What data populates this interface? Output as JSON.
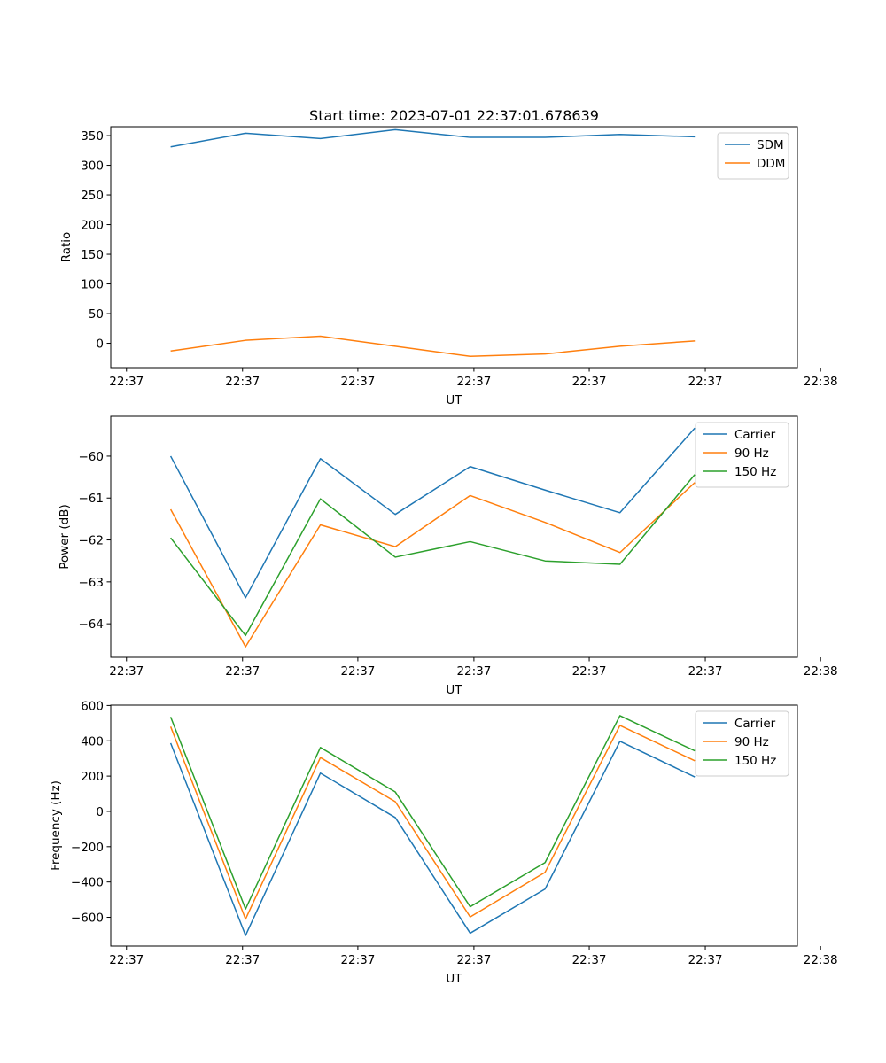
{
  "title": "Start time: 2023-07-01 22:37:01.678639",
  "colors": {
    "blue": "#1f77b4",
    "orange": "#ff7f0e",
    "green": "#2ca02c"
  },
  "chart_data": [
    {
      "type": "line",
      "title": "Start time: 2023-07-01 22:37:01.678639",
      "xlabel": "UT",
      "ylabel": "Ratio",
      "x": [
        1,
        2,
        3,
        4,
        5,
        6,
        7,
        8
      ],
      "xlim": [
        0.2,
        9.37
      ],
      "xticks": [
        0.41,
        1.96,
        3.5,
        5.05,
        6.59,
        8.14,
        9.68
      ],
      "xtick_labels": [
        "22:37",
        "22:37",
        "22:37",
        "22:37",
        "22:37",
        "22:37",
        "22:38"
      ],
      "ylim": [
        -41,
        365
      ],
      "yticks": [
        0,
        50,
        100,
        150,
        200,
        250,
        300,
        350
      ],
      "ytick_labels": [
        "0",
        "50",
        "100",
        "150",
        "200",
        "250",
        "300",
        "350"
      ],
      "legend_loc": "top-right",
      "series": [
        {
          "name": "SDM",
          "color": "#1f77b4",
          "values": [
            331,
            354,
            345,
            360,
            347,
            347,
            352,
            348
          ]
        },
        {
          "name": "DDM",
          "color": "#ff7f0e",
          "values": [
            -13,
            5,
            12,
            -5,
            -22,
            -18,
            -5,
            4
          ]
        }
      ]
    },
    {
      "type": "line",
      "title": "",
      "xlabel": "UT",
      "ylabel": "Power (dB)",
      "x": [
        1,
        2,
        3,
        4,
        5,
        6,
        7,
        8
      ],
      "xlim": [
        0.2,
        9.37
      ],
      "xticks": [
        0.41,
        1.96,
        3.5,
        5.05,
        6.59,
        8.14,
        9.68
      ],
      "xtick_labels": [
        "22:37",
        "22:37",
        "22:37",
        "22:37",
        "22:37",
        "22:37",
        "22:38"
      ],
      "ylim": [
        -64.8,
        -59.05
      ],
      "yticks": [
        -64,
        -63,
        -62,
        -61,
        -60
      ],
      "ytick_labels": [
        "−64",
        "−63",
        "−62",
        "−61",
        "−60"
      ],
      "legend_loc": "top-right",
      "series": [
        {
          "name": "Carrier",
          "color": "#1f77b4",
          "values": [
            -60.0,
            -63.38,
            -60.06,
            -61.39,
            -60.25,
            -60.81,
            -61.35,
            -59.33
          ]
        },
        {
          "name": "90 Hz",
          "color": "#ff7f0e",
          "values": [
            -61.27,
            -64.55,
            -61.64,
            -62.16,
            -60.94,
            -61.58,
            -62.3,
            -60.63
          ]
        },
        {
          "name": "150 Hz",
          "color": "#2ca02c",
          "values": [
            -61.95,
            -64.28,
            -61.02,
            -62.41,
            -62.04,
            -62.5,
            -62.58,
            -60.44
          ]
        }
      ]
    },
    {
      "type": "line",
      "title": "",
      "xlabel": "UT",
      "ylabel": "Frequency (Hz)",
      "x": [
        1,
        2,
        3,
        4,
        5,
        6,
        7,
        8
      ],
      "xlim": [
        0.2,
        9.37
      ],
      "xticks": [
        0.41,
        1.96,
        3.5,
        5.05,
        6.59,
        8.14,
        9.68
      ],
      "xtick_labels": [
        "22:37",
        "22:37",
        "22:37",
        "22:37",
        "22:37",
        "22:37",
        "22:38"
      ],
      "ylim": [
        -763,
        602
      ],
      "yticks": [
        -600,
        -400,
        -200,
        0,
        200,
        400,
        600
      ],
      "ytick_labels": [
        "−600",
        "−400",
        "−200",
        "0",
        "200",
        "400",
        "600"
      ],
      "legend_loc": "top-right",
      "series": [
        {
          "name": "Carrier",
          "color": "#1f77b4",
          "values": [
            387,
            -703,
            217,
            -35,
            -690,
            -440,
            397,
            195
          ]
        },
        {
          "name": "90 Hz",
          "color": "#ff7f0e",
          "values": [
            480,
            -610,
            305,
            55,
            -598,
            -345,
            487,
            287
          ]
        },
        {
          "name": "150 Hz",
          "color": "#2ca02c",
          "values": [
            535,
            -553,
            362,
            110,
            -540,
            -290,
            542,
            343
          ]
        }
      ]
    }
  ]
}
